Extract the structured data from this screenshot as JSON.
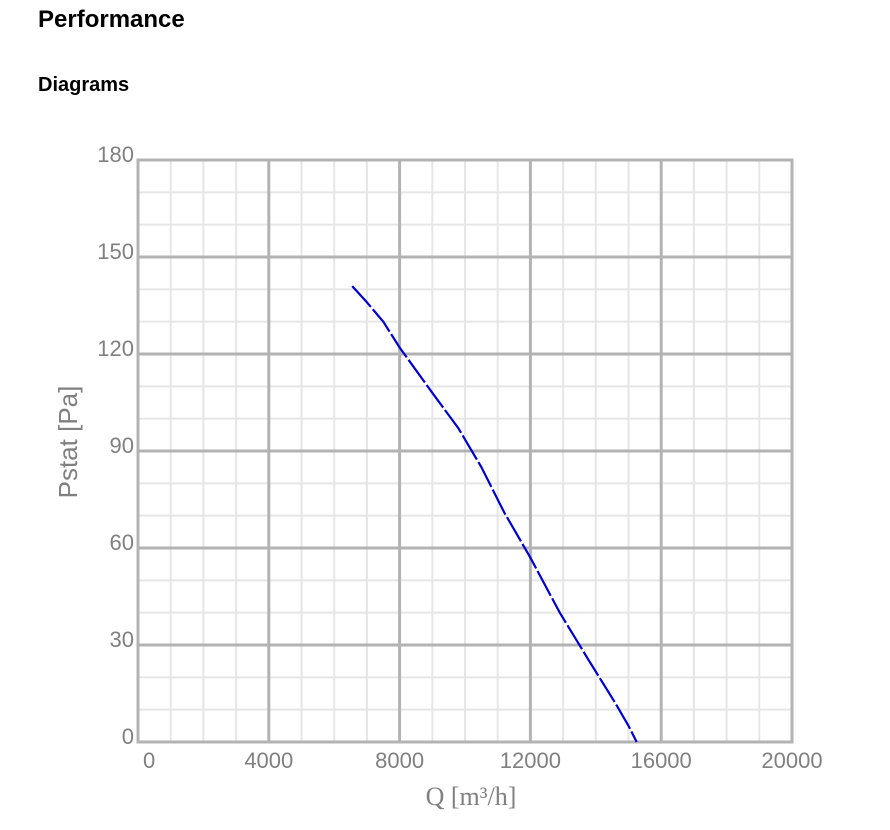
{
  "header": {
    "title": "Performance",
    "subtitle": "Diagrams"
  },
  "chart_data": {
    "type": "line",
    "xlabel": "Q [m³/h]",
    "ylabel": "Pstat [Pa]",
    "xlim": [
      0,
      20000
    ],
    "ylim": [
      0,
      180
    ],
    "x_ticks": [
      "0",
      "4000",
      "8000",
      "12000",
      "16000",
      "20000"
    ],
    "y_ticks": [
      "0",
      "30",
      "60",
      "90",
      "120",
      "150",
      "180"
    ],
    "grid": true,
    "line_color": "#0000cc",
    "series": [
      {
        "x": [
          6550,
          7000,
          7500,
          8000,
          9000,
          9800,
          10500,
          11200,
          12000,
          12900,
          13800,
          14600,
          15000,
          15250
        ],
        "y": [
          141,
          136,
          130,
          122,
          108,
          97,
          85,
          71,
          57,
          40,
          25,
          12,
          5,
          0
        ]
      }
    ]
  }
}
